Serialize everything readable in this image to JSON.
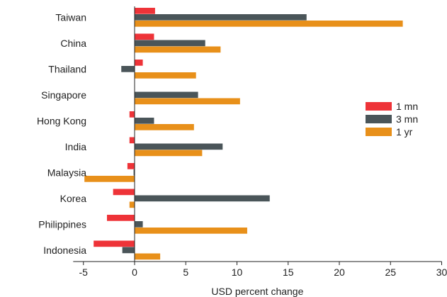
{
  "chart_data": {
    "type": "bar",
    "orientation": "horizontal",
    "categories": [
      "Taiwan",
      "China",
      "Thailand",
      "Singapore",
      "Hong Kong",
      "India",
      "Malaysia",
      "Korea",
      "Philippines",
      "Indonesia"
    ],
    "series": [
      {
        "name": "1 mn",
        "color": "#ee3338",
        "values": [
          2.0,
          1.9,
          0.8,
          0.0,
          -0.5,
          -0.5,
          -0.7,
          -2.1,
          -2.7,
          -4.0
        ]
      },
      {
        "name": "3 mn",
        "color": "#4a5559",
        "values": [
          16.8,
          6.9,
          -1.3,
          6.2,
          1.9,
          8.6,
          -0.1,
          13.2,
          0.8,
          -1.2
        ]
      },
      {
        "name": "1 yr",
        "color": "#e8901a",
        "values": [
          26.2,
          8.4,
          6.0,
          10.3,
          5.8,
          6.6,
          -4.9,
          -0.5,
          11.0,
          2.5
        ]
      }
    ],
    "xlabel": "USD percent change",
    "ylabel": "",
    "title": "",
    "xlim": [
      -6,
      30
    ],
    "xticks": [
      -5,
      0,
      5,
      10,
      15,
      20,
      25,
      30
    ],
    "xtick_labels": [
      "-5",
      "0",
      "5",
      "10",
      "15",
      "20",
      "25",
      "30"
    ],
    "grid": false,
    "legend_position": "right"
  }
}
